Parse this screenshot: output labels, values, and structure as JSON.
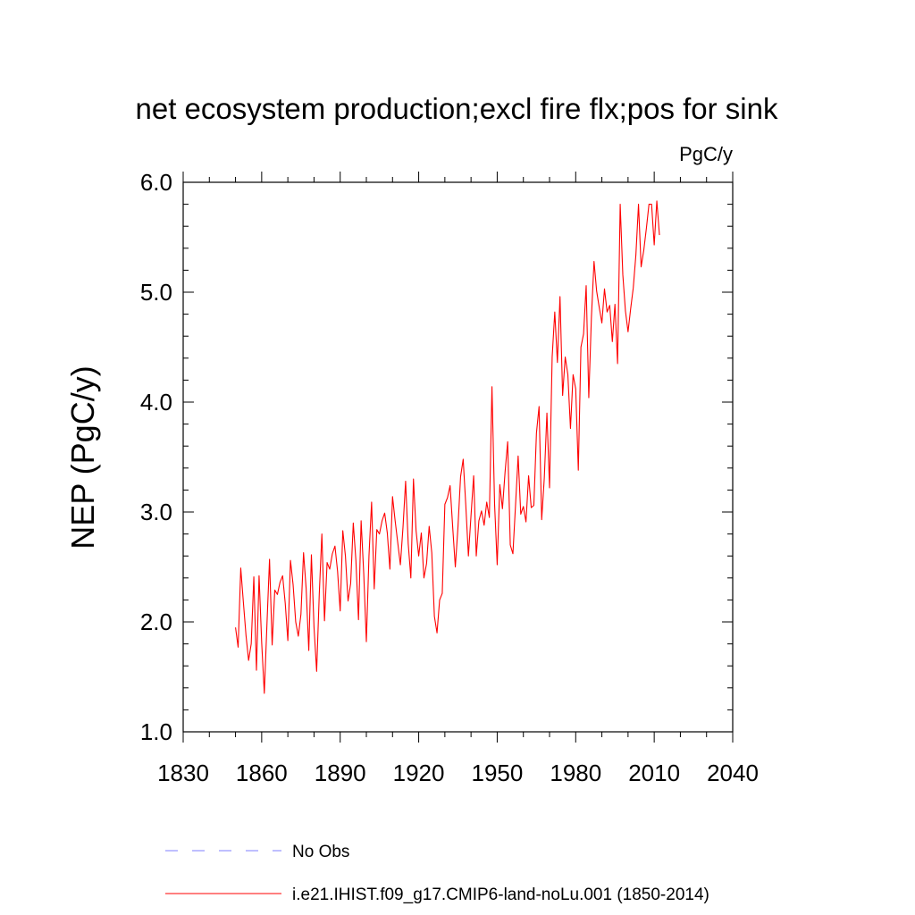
{
  "chart_data": {
    "type": "line",
    "title": "net ecosystem production;excl fire flx;pos for sink",
    "units": "PgC/y",
    "ylabel": "NEP  (PgC/y)",
    "xlabel": "",
    "xlim": [
      1830,
      2040
    ],
    "ylim": [
      1.0,
      6.0
    ],
    "xticks": [
      "1830",
      "1860",
      "1890",
      "1920",
      "1950",
      "1980",
      "2010",
      "2040"
    ],
    "yticks": [
      "1.0",
      "2.0",
      "3.0",
      "4.0",
      "5.0",
      "6.0"
    ],
    "grid": false,
    "legend_position": "bottom",
    "colors": {
      "model": "#ff0000",
      "obs": "#7f7fff"
    },
    "legend": [
      {
        "label": "No Obs",
        "style": "dashed",
        "color": "#7f7fff"
      },
      {
        "label": "i.e21.IHIST.f09_g17.CMIP6-land-noLu.001 (1850-2014)",
        "style": "solid",
        "color": "#ff0000"
      }
    ],
    "series": [
      {
        "name": "i.e21.IHIST.f09_g17.CMIP6-land-noLu.001 (1850-2014)",
        "x_start": 1850,
        "x_step": 1,
        "values": [
          1.95,
          1.77,
          2.49,
          2.18,
          1.88,
          1.65,
          1.8,
          2.41,
          1.56,
          2.42,
          1.81,
          1.35,
          1.97,
          2.57,
          1.79,
          2.29,
          2.25,
          2.36,
          2.42,
          2.17,
          1.83,
          2.56,
          2.34,
          2.0,
          1.87,
          2.07,
          2.63,
          2.3,
          1.74,
          2.61,
          1.95,
          1.55,
          2.25,
          2.8,
          2.01,
          2.54,
          2.48,
          2.62,
          2.69,
          2.46,
          2.1,
          2.83,
          2.6,
          2.19,
          2.35,
          2.9,
          2.56,
          2.02,
          2.92,
          2.44,
          1.82,
          2.6,
          3.09,
          2.3,
          2.84,
          2.8,
          2.92,
          2.99,
          2.81,
          2.48,
          3.14,
          2.92,
          2.72,
          2.52,
          2.86,
          3.28,
          2.71,
          2.4,
          3.3,
          2.83,
          2.6,
          2.81,
          2.4,
          2.53,
          2.87,
          2.63,
          2.05,
          1.9,
          2.2,
          2.26,
          3.07,
          3.13,
          3.24,
          2.86,
          2.5,
          2.86,
          3.32,
          3.48,
          3.06,
          2.6,
          2.97,
          3.33,
          2.6,
          2.92,
          3.01,
          2.88,
          3.09,
          2.95,
          4.14,
          3.07,
          2.52,
          3.25,
          3.03,
          3.36,
          3.64,
          2.7,
          2.62,
          3.06,
          3.51,
          2.98,
          3.05,
          2.91,
          3.33,
          3.04,
          3.06,
          3.72,
          3.96,
          2.93,
          3.31,
          3.9,
          3.22,
          4.41,
          4.82,
          4.36,
          4.96,
          4.06,
          4.41,
          4.25,
          3.76,
          4.25,
          4.12,
          3.38,
          4.5,
          4.62,
          5.06,
          4.04,
          4.77,
          5.28,
          5.01,
          4.86,
          4.72,
          5.03,
          4.82,
          4.88,
          4.55,
          4.89,
          4.35,
          5.8,
          5.16,
          4.83,
          4.64,
          4.85,
          5.04,
          5.34,
          5.8,
          5.23,
          5.38,
          5.58,
          5.8,
          5.8,
          5.43,
          5.83,
          5.52
        ]
      }
    ]
  }
}
